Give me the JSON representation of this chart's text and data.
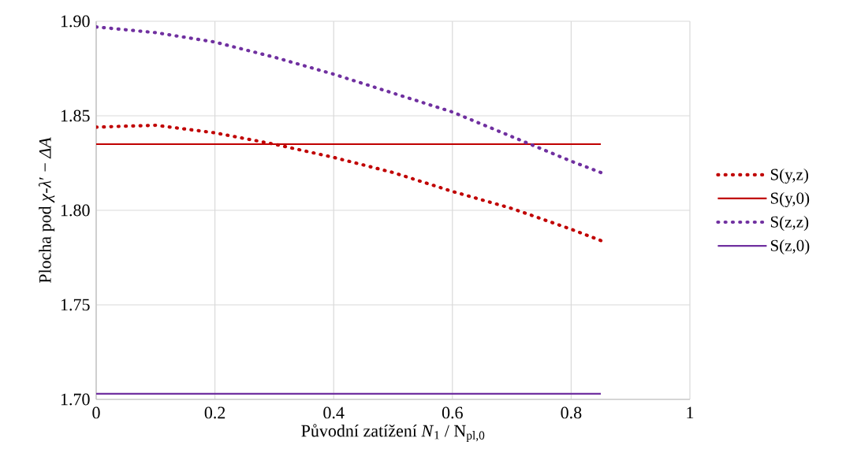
{
  "chart_data": {
    "type": "line",
    "xlabel": "Původní zatížení *N*$_{1}$ / N$_{pl,0}$",
    "ylabel": "Plocha pod *χ*-*λ*′ − *ΔA*",
    "xlim": [
      0,
      1
    ],
    "xticks": [
      0,
      0.2,
      0.4,
      0.6,
      0.8,
      1
    ],
    "ylim": [
      1.7,
      1.9
    ],
    "yticks": [
      {
        "value": 1.7,
        "label": "1.70"
      },
      {
        "value": 1.75,
        "label": "1.75"
      },
      {
        "value": 1.8,
        "label": "1.80"
      },
      {
        "value": 1.85,
        "label": "1.85"
      },
      {
        "value": 1.9,
        "label": "1.90"
      }
    ],
    "grid": true,
    "legend": "right",
    "marker": "none",
    "series": [
      {
        "name": "S(y,z)",
        "color": "#c00000",
        "line_style": "dotted",
        "x": [
          0,
          0.1,
          0.2,
          0.3,
          0.4,
          0.5,
          0.6,
          0.7,
          0.8,
          0.85
        ],
        "values": [
          1.844,
          1.845,
          1.841,
          1.835,
          1.828,
          1.82,
          1.81,
          1.801,
          1.79,
          1.784
        ]
      },
      {
        "name": "S(y,0)",
        "color": "#c00000",
        "line_style": "solid",
        "x": [
          0,
          0.85
        ],
        "values": [
          1.835,
          1.835
        ]
      },
      {
        "name": "S(z,z)",
        "color": "#7030a0",
        "line_style": "dotted",
        "x": [
          0,
          0.1,
          0.2,
          0.3,
          0.4,
          0.5,
          0.6,
          0.7,
          0.8,
          0.85
        ],
        "values": [
          1.897,
          1.894,
          1.889,
          1.881,
          1.872,
          1.862,
          1.852,
          1.839,
          1.826,
          1.82
        ]
      },
      {
        "name": "S(z,0)",
        "color": "#7030a0",
        "line_style": "solid",
        "x": [
          0,
          0.85
        ],
        "values": [
          1.703,
          1.703
        ]
      }
    ]
  }
}
